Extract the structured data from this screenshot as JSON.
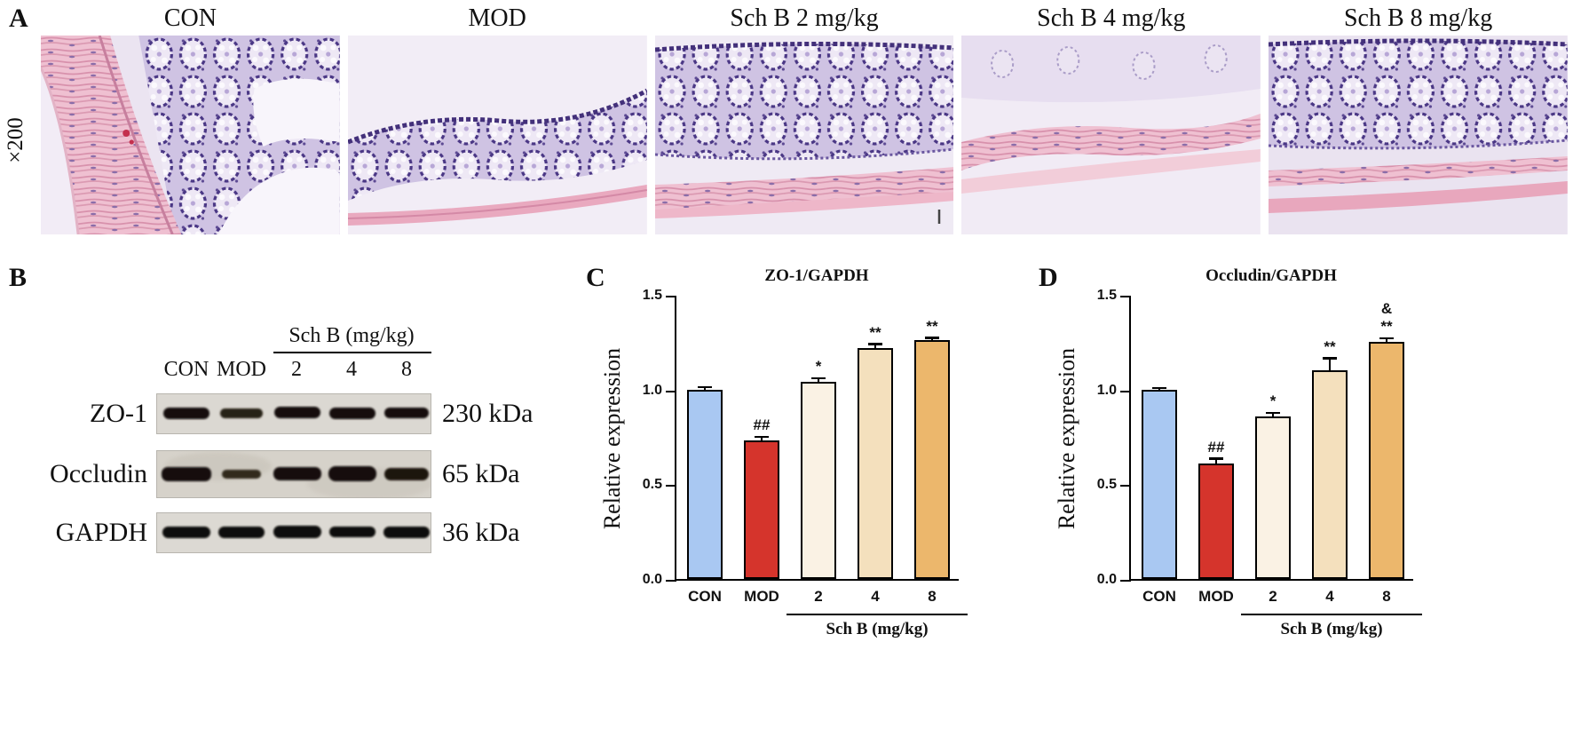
{
  "figure": {
    "panels": {
      "a": {
        "label": "A",
        "magnification": "×200",
        "images": [
          {
            "label": "CON"
          },
          {
            "label": "MOD"
          },
          {
            "label": "Sch B 2 mg/kg"
          },
          {
            "label": "Sch B 4 mg/kg"
          },
          {
            "label": "Sch B 8 mg/kg"
          }
        ]
      },
      "b": {
        "label": "B",
        "group_header": "Sch B (mg/kg)",
        "lane_labels": [
          "CON",
          "MOD",
          "2",
          "4",
          "8"
        ],
        "blots": [
          {
            "protein": "ZO-1",
            "weight": "230 kDa"
          },
          {
            "protein": "Occludin",
            "weight": "65 kDa"
          },
          {
            "protein": "GAPDH",
            "weight": "36 kDa"
          }
        ]
      },
      "c": {
        "label": "C"
      },
      "d": {
        "label": "D"
      }
    }
  },
  "chart_data": [
    {
      "type": "bar",
      "title": "ZO-1/GAPDH",
      "ylabel": "Relative expression",
      "ylim": [
        0,
        1.5
      ],
      "yticks": [
        0.0,
        0.5,
        1.0,
        1.5
      ],
      "categories": [
        "CON",
        "MOD",
        "2",
        "4",
        "8"
      ],
      "values": [
        1.0,
        0.73,
        1.04,
        1.22,
        1.26
      ],
      "errors": [
        0.012,
        0.02,
        0.02,
        0.02,
        0.012
      ],
      "annotations": [
        "",
        "##",
        "*",
        "**",
        "**"
      ],
      "colors": [
        "#a9c8f2",
        "#d5342c",
        "#faf2e4",
        "#f4e0bd",
        "#ecb76c"
      ],
      "group_label": "Sch B (mg/kg)",
      "group_categories": [
        "2",
        "4",
        "8"
      ],
      "grid": false,
      "legend": "none"
    },
    {
      "type": "bar",
      "title": "Occludin/GAPDH",
      "ylabel": "Relative expression",
      "ylim": [
        0,
        1.5
      ],
      "yticks": [
        0.0,
        0.5,
        1.0,
        1.5
      ],
      "categories": [
        "CON",
        "MOD",
        "2",
        "4",
        "8"
      ],
      "values": [
        1.0,
        0.61,
        0.86,
        1.1,
        1.25
      ],
      "errors": [
        0.008,
        0.025,
        0.018,
        0.065,
        0.02
      ],
      "annotations": [
        "",
        "##",
        "*",
        "**",
        "&\n**"
      ],
      "colors": [
        "#a9c8f2",
        "#d5342c",
        "#faf2e4",
        "#f4e0bd",
        "#ecb76c"
      ],
      "group_label": "Sch B (mg/kg)",
      "group_categories": [
        "2",
        "4",
        "8"
      ],
      "grid": false,
      "legend": "none"
    }
  ]
}
